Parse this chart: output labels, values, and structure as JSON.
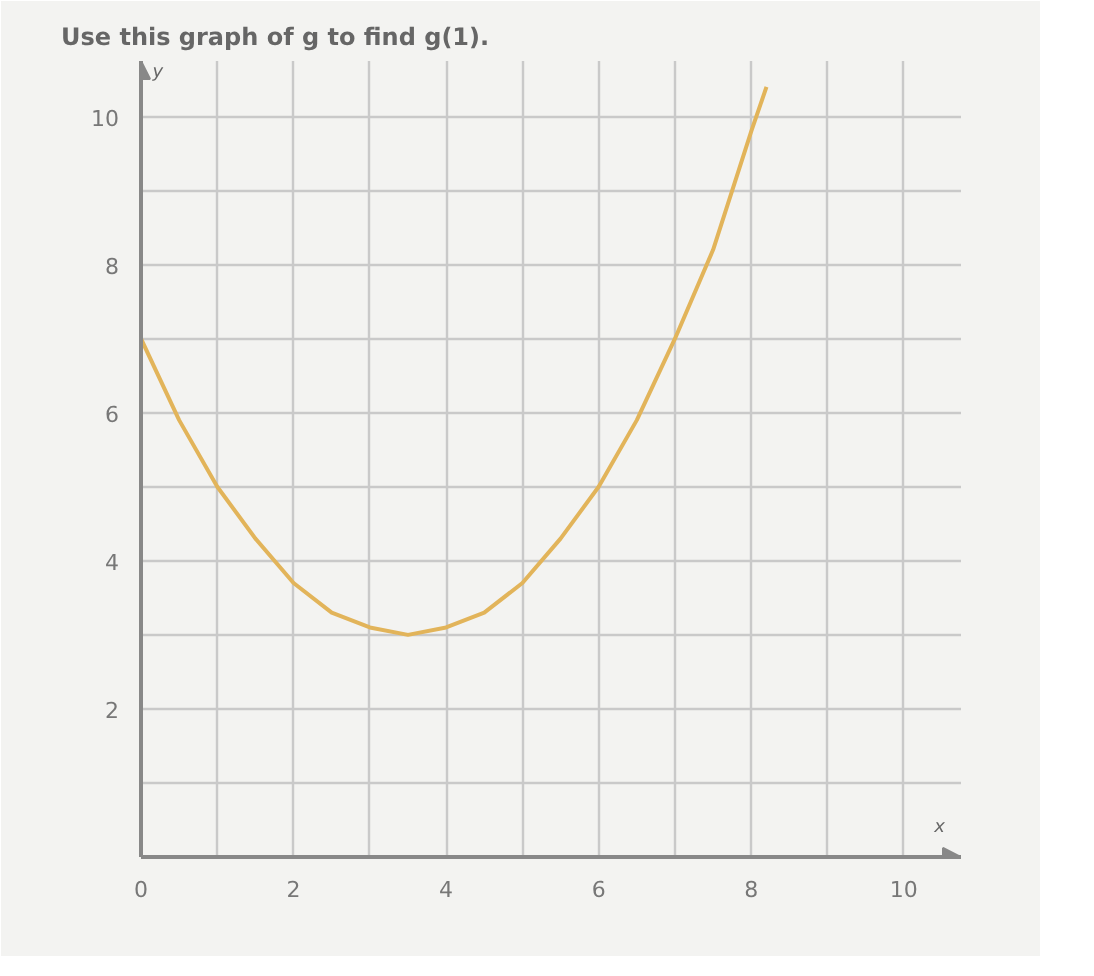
{
  "chart_data": {
    "type": "line",
    "title": "Use this graph of g to find g(1).",
    "xlabel": "x",
    "ylabel": "y",
    "x": [
      0,
      0.5,
      1,
      1.5,
      2,
      2.5,
      3,
      3.5,
      4,
      4.5,
      5,
      5.5,
      6,
      6.5,
      7,
      7.5,
      8,
      8.2
    ],
    "series": [
      {
        "color": "#e2b45a",
        "values": [
          7,
          5.9,
          5,
          4.3,
          3.7,
          3.3,
          3.1,
          3,
          3.1,
          3.3,
          3.7,
          4.3,
          5,
          5.9,
          7,
          8.2,
          9.8,
          10.4
        ]
      }
    ],
    "xlim": [
      0,
      10.75
    ],
    "ylim": [
      0,
      10.75
    ],
    "xticks": [
      0,
      {
        "value": 1,
        "label": null
      },
      2,
      {
        "value": 3,
        "label": null
      },
      4,
      {
        "value": 5,
        "label": null
      },
      6,
      {
        "value": 7,
        "label": null
      },
      8,
      {
        "value": 9,
        "label": null
      },
      10
    ],
    "yticks": [
      {
        "value": 1,
        "label": null
      },
      2,
      {
        "value": 3,
        "label": null
      },
      4,
      {
        "value": 5,
        "label": null
      },
      6,
      {
        "value": 7,
        "label": null
      },
      8,
      {
        "value": 9,
        "label": null
      },
      10
    ],
    "grid": true,
    "marker": "none",
    "line_style": "solid"
  }
}
